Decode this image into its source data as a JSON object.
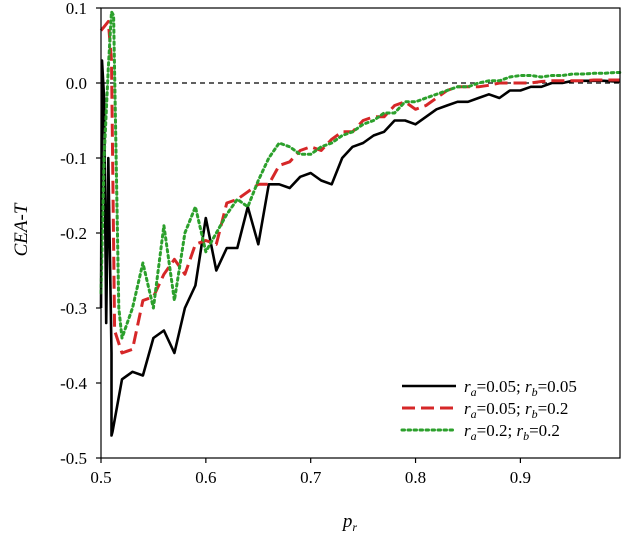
{
  "chart_data": {
    "type": "line",
    "title": "",
    "xlabel": "p",
    "xlabel_sub": "r",
    "ylabel": "CEA-T",
    "xlim": [
      0.5,
      0.995
    ],
    "ylim": [
      -0.5,
      0.1
    ],
    "x_ticks": [
      0.5,
      0.6,
      0.7,
      0.8,
      0.9
    ],
    "x_tick_labels": [
      "0.5",
      "0.6",
      "0.7",
      "0.8",
      "0.9"
    ],
    "y_ticks": [
      0.1,
      0.0,
      -0.1,
      -0.2,
      -0.3,
      -0.4,
      -0.5
    ],
    "y_tick_labels": [
      "0.1",
      "0.0",
      "-0.1",
      "-0.2",
      "-0.3",
      "-0.4",
      "-0.5"
    ],
    "reference_line": {
      "y": 0.0,
      "style": "dashed",
      "color": "#000000"
    },
    "grid": false,
    "legend_position": "bottom-right",
    "series": [
      {
        "legend": {
          "a": "0.05",
          "b": "0.05"
        },
        "color": "#000000",
        "style": "solid",
        "x": [
          0.5,
          0.501,
          0.503,
          0.505,
          0.507,
          0.51,
          0.51,
          0.511,
          0.52,
          0.53,
          0.54,
          0.55,
          0.56,
          0.57,
          0.58,
          0.59,
          0.6,
          0.61,
          0.62,
          0.63,
          0.64,
          0.65,
          0.66,
          0.67,
          0.68,
          0.69,
          0.7,
          0.71,
          0.72,
          0.73,
          0.74,
          0.75,
          0.76,
          0.77,
          0.78,
          0.79,
          0.8,
          0.81,
          0.82,
          0.83,
          0.84,
          0.85,
          0.86,
          0.87,
          0.88,
          0.89,
          0.9,
          0.91,
          0.92,
          0.93,
          0.94,
          0.95,
          0.96,
          0.97,
          0.98,
          0.99,
          0.995
        ],
        "y": [
          -0.3,
          0.03,
          -0.02,
          -0.32,
          -0.1,
          -0.36,
          -0.47,
          -0.465,
          -0.395,
          -0.385,
          -0.39,
          -0.34,
          -0.33,
          -0.36,
          -0.3,
          -0.27,
          -0.18,
          -0.25,
          -0.22,
          -0.22,
          -0.165,
          -0.215,
          -0.135,
          -0.135,
          -0.14,
          -0.125,
          -0.12,
          -0.13,
          -0.135,
          -0.1,
          -0.085,
          -0.08,
          -0.07,
          -0.065,
          -0.05,
          -0.05,
          -0.055,
          -0.045,
          -0.035,
          -0.03,
          -0.025,
          -0.025,
          -0.02,
          -0.015,
          -0.02,
          -0.01,
          -0.01,
          -0.005,
          -0.005,
          0.0,
          0.0,
          0.003,
          0.003,
          0.003,
          0.003,
          0.002,
          0.002
        ]
      },
      {
        "legend": {
          "a": "0.05",
          "b": "0.2"
        },
        "color": "#d62728",
        "style": "dashed",
        "x": [
          0.5,
          0.503,
          0.507,
          0.51,
          0.513,
          0.52,
          0.53,
          0.54,
          0.55,
          0.56,
          0.57,
          0.58,
          0.59,
          0.6,
          0.61,
          0.62,
          0.63,
          0.64,
          0.65,
          0.66,
          0.67,
          0.68,
          0.69,
          0.7,
          0.71,
          0.72,
          0.73,
          0.74,
          0.75,
          0.76,
          0.77,
          0.78,
          0.79,
          0.8,
          0.81,
          0.82,
          0.83,
          0.84,
          0.85,
          0.86,
          0.87,
          0.88,
          0.89,
          0.9,
          0.91,
          0.92,
          0.93,
          0.94,
          0.95,
          0.96,
          0.97,
          0.98,
          0.99,
          0.995
        ],
        "y": [
          0.07,
          0.075,
          0.082,
          0.03,
          -0.33,
          -0.36,
          -0.355,
          -0.29,
          -0.285,
          -0.255,
          -0.235,
          -0.255,
          -0.215,
          -0.21,
          -0.215,
          -0.16,
          -0.155,
          -0.145,
          -0.135,
          -0.135,
          -0.11,
          -0.105,
          -0.09,
          -0.085,
          -0.09,
          -0.075,
          -0.065,
          -0.065,
          -0.05,
          -0.045,
          -0.045,
          -0.03,
          -0.025,
          -0.035,
          -0.03,
          -0.02,
          -0.01,
          -0.005,
          -0.005,
          -0.005,
          -0.003,
          0.0,
          0.0,
          0.0,
          0.0,
          0.002,
          0.003,
          0.003,
          0.003,
          0.003,
          0.004,
          0.004,
          0.004,
          0.004
        ]
      },
      {
        "legend": {
          "a": "0.2",
          "b": "0.2"
        },
        "color": "#2ca02c",
        "style": "dotted",
        "x": [
          0.5,
          0.503,
          0.507,
          0.51,
          0.512,
          0.517,
          0.52,
          0.53,
          0.54,
          0.55,
          0.56,
          0.57,
          0.58,
          0.59,
          0.6,
          0.61,
          0.62,
          0.63,
          0.64,
          0.65,
          0.66,
          0.67,
          0.68,
          0.69,
          0.7,
          0.71,
          0.72,
          0.73,
          0.74,
          0.75,
          0.76,
          0.77,
          0.78,
          0.79,
          0.8,
          0.81,
          0.82,
          0.83,
          0.84,
          0.85,
          0.86,
          0.87,
          0.88,
          0.89,
          0.9,
          0.91,
          0.92,
          0.93,
          0.94,
          0.95,
          0.96,
          0.97,
          0.98,
          0.99,
          0.995
        ],
        "y": [
          -0.28,
          -0.1,
          0.02,
          0.095,
          0.09,
          -0.3,
          -0.34,
          -0.3,
          -0.24,
          -0.3,
          -0.19,
          -0.29,
          -0.2,
          -0.165,
          -0.225,
          -0.2,
          -0.175,
          -0.155,
          -0.165,
          -0.13,
          -0.1,
          -0.08,
          -0.085,
          -0.095,
          -0.095,
          -0.085,
          -0.08,
          -0.07,
          -0.065,
          -0.055,
          -0.05,
          -0.04,
          -0.04,
          -0.025,
          -0.025,
          -0.02,
          -0.015,
          -0.01,
          -0.005,
          -0.005,
          0.0,
          0.003,
          0.003,
          0.008,
          0.01,
          0.01,
          0.008,
          0.01,
          0.01,
          0.012,
          0.012,
          0.013,
          0.013,
          0.014,
          0.014
        ]
      }
    ]
  }
}
